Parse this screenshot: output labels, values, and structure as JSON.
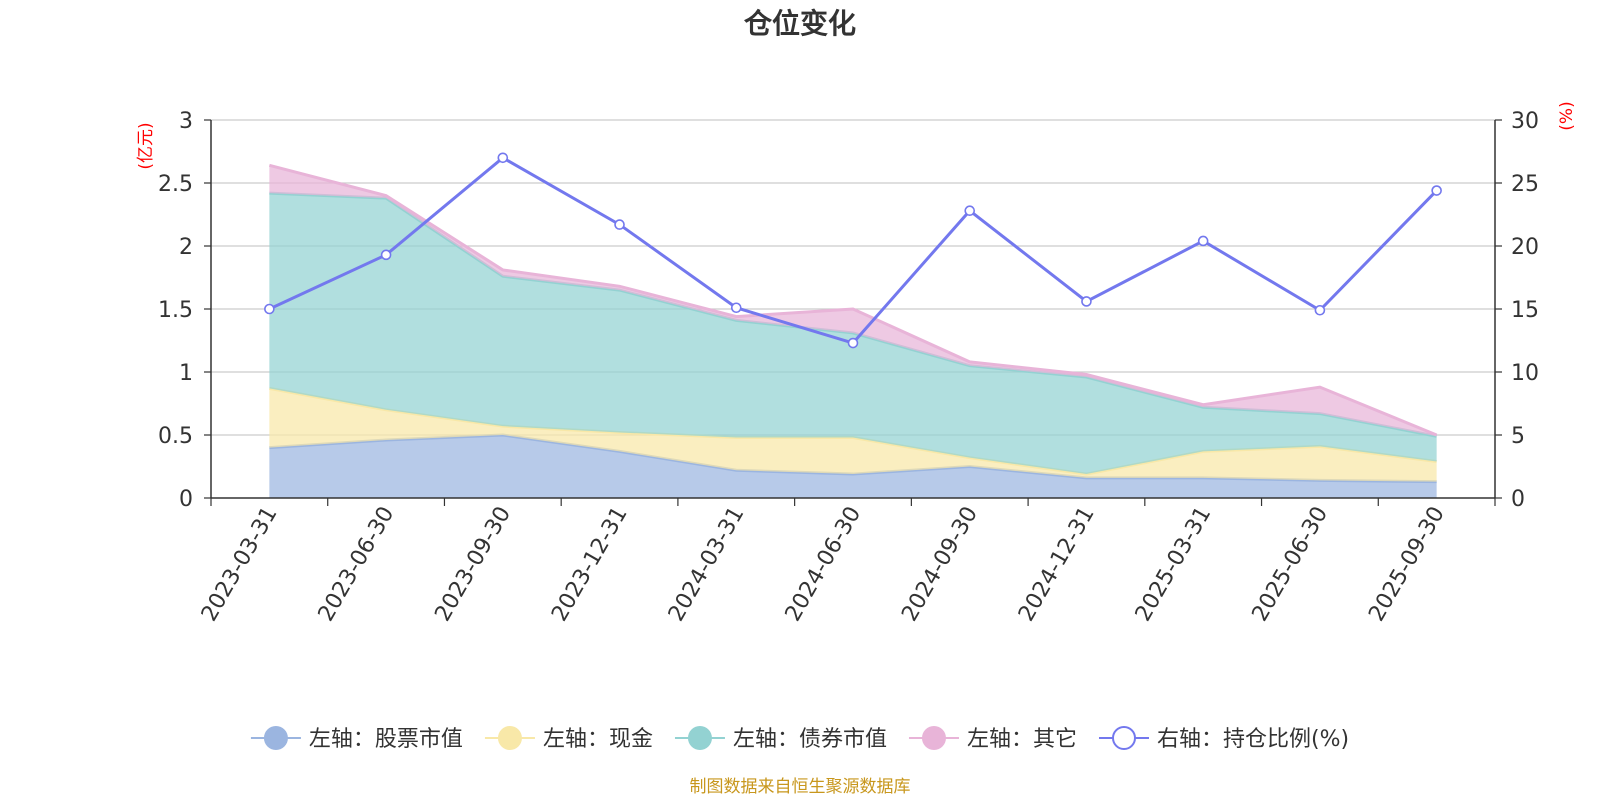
{
  "chart_data": {
    "type": "area",
    "title": "仓位变化",
    "categories": [
      "2023-03-31",
      "2023-06-30",
      "2023-09-30",
      "2023-12-31",
      "2024-03-31",
      "2024-06-30",
      "2024-09-30",
      "2024-12-31",
      "2025-03-31",
      "2025-06-30",
      "2025-09-30"
    ],
    "left_axis": {
      "unit": "(亿元)",
      "min": 0,
      "max": 3,
      "ticks": [
        "0",
        "0.5",
        "1",
        "1.5",
        "2",
        "2.5",
        "3"
      ]
    },
    "right_axis": {
      "unit": "(%)",
      "min": 0,
      "max": 30,
      "ticks": [
        "0",
        "5",
        "10",
        "15",
        "20",
        "25",
        "30"
      ]
    },
    "stack_series": [
      {
        "name": "左轴：股票市值",
        "color": "#9bb5e0",
        "values": [
          0.4,
          0.46,
          0.5,
          0.37,
          0.22,
          0.19,
          0.25,
          0.16,
          0.16,
          0.14,
          0.13
        ]
      },
      {
        "name": "左轴：现金",
        "color": "#f8e8a8",
        "values": [
          0.47,
          0.24,
          0.07,
          0.15,
          0.26,
          0.29,
          0.07,
          0.03,
          0.21,
          0.27,
          0.16
        ]
      },
      {
        "name": "左轴：债券市值",
        "color": "#93d2d2",
        "values": [
          1.55,
          1.68,
          1.19,
          1.13,
          0.93,
          0.83,
          0.73,
          0.77,
          0.35,
          0.26,
          0.2
        ]
      },
      {
        "name": "左轴：其它",
        "color": "#e8b4d8",
        "values": [
          0.22,
          0.02,
          0.05,
          0.03,
          0.03,
          0.19,
          0.03,
          0.02,
          0.02,
          0.21,
          0.01
        ]
      }
    ],
    "line_series": {
      "name": "右轴：持仓比例(%)",
      "color": "#7378ee",
      "values": [
        15.0,
        19.3,
        27.0,
        21.7,
        15.1,
        12.3,
        22.8,
        15.6,
        20.4,
        14.9,
        24.4
      ]
    }
  },
  "footer": {
    "source": "制图数据来自恒生聚源数据库"
  }
}
